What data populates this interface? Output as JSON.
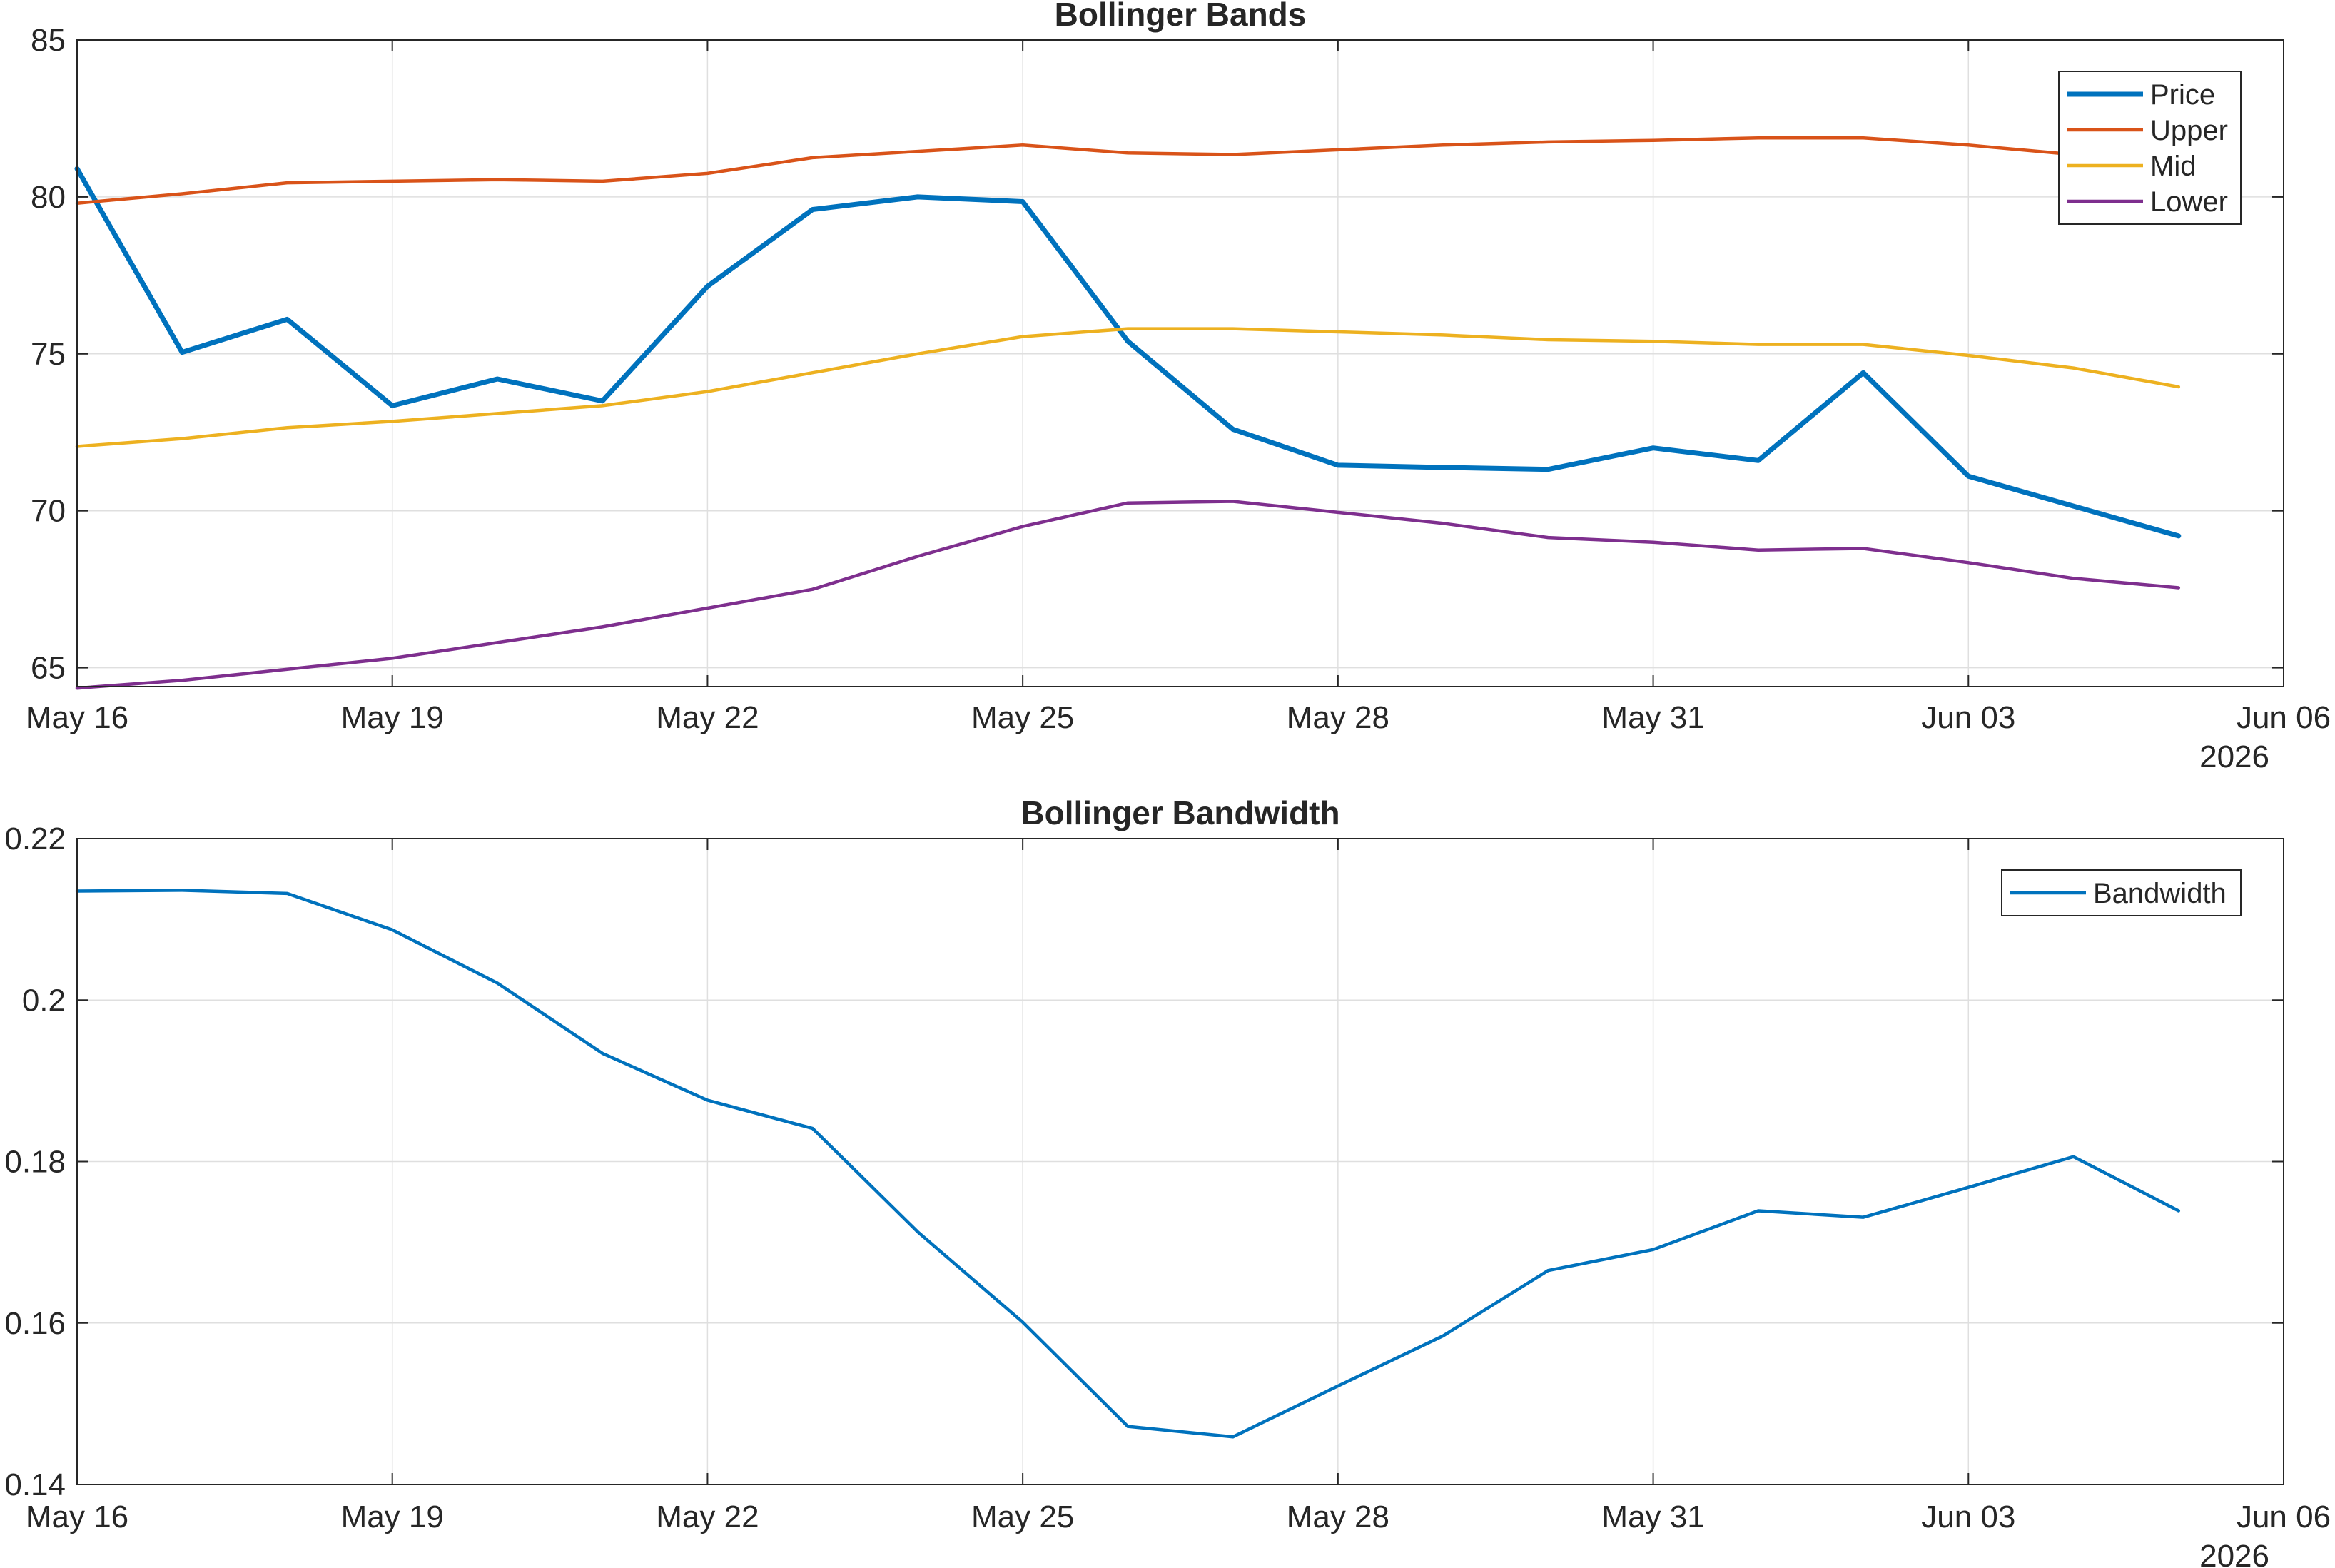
{
  "chart_data": [
    {
      "type": "line",
      "title": "Bollinger Bands",
      "xlabel": "",
      "ylabel": "",
      "x": [
        "2026-05-16",
        "2026-05-17",
        "2026-05-18",
        "2026-05-19",
        "2026-05-20",
        "2026-05-21",
        "2026-05-22",
        "2026-05-23",
        "2026-05-24",
        "2026-05-25",
        "2026-05-26",
        "2026-05-27",
        "2026-05-28",
        "2026-05-29",
        "2026-05-30",
        "2026-05-31",
        "2026-06-01",
        "2026-06-02",
        "2026-06-03",
        "2026-06-04",
        "2026-06-05"
      ],
      "xlim": [
        "2026-05-16",
        "2026-06-06"
      ],
      "xticks": [
        "May 16",
        "May 19",
        "May 22",
        "May 25",
        "May 28",
        "May 31",
        "Jun 03",
        "Jun 06"
      ],
      "xtick_dates": [
        "2026-05-16",
        "2026-05-19",
        "2026-05-22",
        "2026-05-25",
        "2026-05-28",
        "2026-05-31",
        "2026-06-03",
        "2026-06-06"
      ],
      "year_label": "2026",
      "ylim": [
        64.4,
        85
      ],
      "yticks": [
        "65",
        "70",
        "75",
        "80",
        "85"
      ],
      "ytick_values": [
        65,
        70,
        75,
        80,
        85
      ],
      "grid": true,
      "legend_position": "top-right",
      "series": [
        {
          "name": "Price",
          "color": "#0072BD",
          "width": "thick",
          "values": [
            80.9,
            75.05,
            76.1,
            73.35,
            74.2,
            73.5,
            77.15,
            79.6,
            80.0,
            79.85,
            75.4,
            72.6,
            71.45,
            71.38,
            71.32,
            72.0,
            71.6,
            74.4,
            71.1,
            70.15,
            69.2
          ]
        },
        {
          "name": "Upper",
          "color": "#D95319",
          "width": "normal",
          "values": [
            79.8,
            80.1,
            80.45,
            80.5,
            80.55,
            80.5,
            80.75,
            81.25,
            81.45,
            81.65,
            81.4,
            81.35,
            81.5,
            81.65,
            81.75,
            81.8,
            81.88,
            81.88,
            81.65,
            81.35,
            81.25
          ]
        },
        {
          "name": "Mid",
          "color": "#EDB120",
          "width": "normal",
          "values": [
            72.05,
            72.3,
            72.65,
            72.85,
            73.1,
            73.35,
            73.8,
            74.4,
            75.0,
            75.55,
            75.8,
            75.8,
            75.7,
            75.6,
            75.45,
            75.4,
            75.3,
            75.3,
            74.95,
            74.55,
            73.95
          ]
        },
        {
          "name": "Lower",
          "color": "#7E2F8E",
          "width": "normal",
          "values": [
            64.35,
            64.6,
            64.95,
            65.3,
            65.8,
            66.3,
            66.9,
            67.5,
            68.55,
            69.5,
            70.25,
            70.3,
            69.95,
            69.6,
            69.15,
            69.0,
            68.75,
            68.8,
            68.35,
            67.85,
            67.55
          ]
        }
      ]
    },
    {
      "type": "line",
      "title": "Bollinger Bandwidth",
      "xlabel": "",
      "ylabel": "",
      "x": [
        "2026-05-16",
        "2026-05-17",
        "2026-05-18",
        "2026-05-19",
        "2026-05-20",
        "2026-05-21",
        "2026-05-22",
        "2026-05-23",
        "2026-05-24",
        "2026-05-25",
        "2026-05-26",
        "2026-05-27",
        "2026-05-28",
        "2026-05-29",
        "2026-05-30",
        "2026-05-31",
        "2026-06-01",
        "2026-06-02",
        "2026-06-03",
        "2026-06-04",
        "2026-06-05"
      ],
      "xlim": [
        "2026-05-16",
        "2026-06-06"
      ],
      "xticks": [
        "May 16",
        "May 19",
        "May 22",
        "May 25",
        "May 28",
        "May 31",
        "Jun 03",
        "Jun 06"
      ],
      "xtick_dates": [
        "2026-05-16",
        "2026-05-19",
        "2026-05-22",
        "2026-05-25",
        "2026-05-28",
        "2026-05-31",
        "2026-06-03",
        "2026-06-06"
      ],
      "year_label": "2026",
      "ylim": [
        0.14,
        0.22
      ],
      "yticks": [
        "0.14",
        "0.16",
        "0.18",
        "0.2",
        "0.22"
      ],
      "ytick_values": [
        0.14,
        0.16,
        0.18,
        0.2,
        0.22
      ],
      "grid": true,
      "legend_position": "top-right",
      "series": [
        {
          "name": "Bandwidth",
          "color": "#0072BD",
          "width": "normal",
          "values": [
            0.2135,
            0.2136,
            0.2132,
            0.2087,
            0.2021,
            0.1934,
            0.1876,
            0.1841,
            0.1713,
            0.1601,
            0.1472,
            0.1459,
            0.1522,
            0.1584,
            0.1665,
            0.1691,
            0.1739,
            0.1731,
            0.1768,
            0.1806,
            0.1739
          ]
        }
      ]
    }
  ]
}
